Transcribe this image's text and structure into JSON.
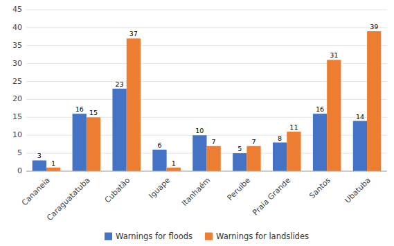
{
  "chart_data": {
    "type": "bar",
    "categories": [
      "Cananeia",
      "Caraguatatuba",
      "Cubatão",
      "Iguape",
      "Itanhaém",
      "Peruibe",
      "Praia Grande",
      "Santos",
      "Ubatuba"
    ],
    "series": [
      {
        "name": "Warnings for floods",
        "color": "#4472C4",
        "values": [
          3,
          16,
          23,
          6,
          10,
          5,
          8,
          16,
          14
        ]
      },
      {
        "name": "Warnings for landslides",
        "color": "#ED7D31",
        "values": [
          1,
          15,
          37,
          1,
          7,
          7,
          11,
          31,
          39
        ]
      }
    ],
    "ylim": [
      0,
      45
    ],
    "yticks": [
      0,
      5,
      10,
      15,
      20,
      25,
      30,
      35,
      40,
      45
    ],
    "grid": true,
    "data_labels": true,
    "legend": "bottom"
  }
}
